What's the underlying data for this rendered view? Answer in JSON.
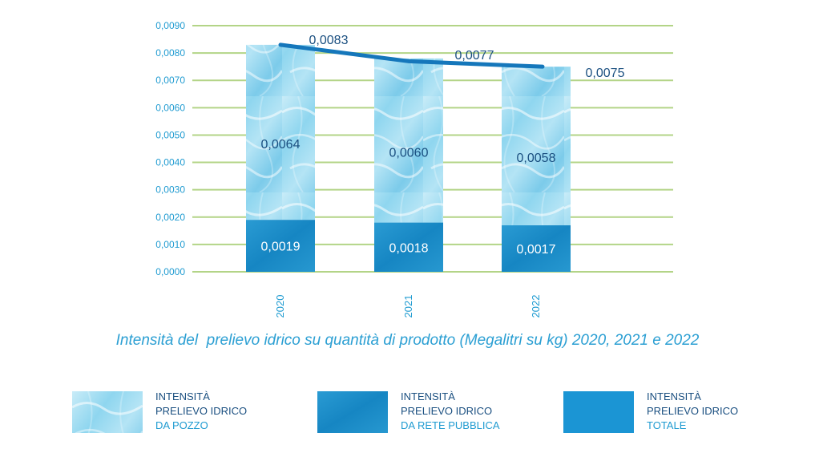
{
  "colors": {
    "grid": "#b3d487",
    "axis_text": "#1f9bd1",
    "line": "#1577bb",
    "label_dark": "#1a4f80",
    "bar_water_base": "#8fd3ec",
    "bar_rete": "#1a8fca",
    "bar_totale": "#1b95d4"
  },
  "chart_data": {
    "type": "bar",
    "title": "Intensità del  prelievo idrico su quantità di prodotto (Megalitri su kg) 2020, 2021 e 2022",
    "categories": [
      "2020",
      "2021",
      "2022"
    ],
    "ylim": [
      0,
      0.009
    ],
    "yticks": [
      {
        "value": 0.0,
        "label": "0,0000"
      },
      {
        "value": 0.001,
        "label": "0,0010"
      },
      {
        "value": 0.002,
        "label": "0,0020"
      },
      {
        "value": 0.003,
        "label": "0,0030"
      },
      {
        "value": 0.004,
        "label": "0,0040"
      },
      {
        "value": 0.005,
        "label": "0,0050"
      },
      {
        "value": 0.006,
        "label": "0,0060"
      },
      {
        "value": 0.007,
        "label": "0,0070"
      },
      {
        "value": 0.008,
        "label": "0,0080"
      },
      {
        "value": 0.009,
        "label": "0,0090"
      }
    ],
    "grid": true,
    "series": [
      {
        "name": "Intensità prelievo idrico da rete pubblica",
        "kind": "stacked-bar-bottom",
        "values": [
          0.0019,
          0.0018,
          0.0017
        ],
        "labels": [
          "0,0019",
          "0,0018",
          "0,0017"
        ]
      },
      {
        "name": "Intensità prelievo idrico da pozzo",
        "kind": "stacked-bar-top",
        "values": [
          0.0064,
          0.006,
          0.0058
        ],
        "labels": [
          "0,0064",
          "0,0060",
          "0,0058"
        ]
      },
      {
        "name": "Intensità prelievo idrico totale",
        "kind": "line",
        "values": [
          0.0083,
          0.0077,
          0.0075
        ],
        "labels": [
          "0,0083",
          "0,0077",
          "0,0075"
        ]
      }
    ]
  },
  "legend": [
    {
      "line1": "INTENSITÀ",
      "line2": "PRELIEVO IDRICO",
      "line3": "DA POZZO"
    },
    {
      "line1": "INTENSITÀ",
      "line2": "PRELIEVO IDRICO",
      "line3": "DA RETE PUBBLICA"
    },
    {
      "line1": "INTENSITÀ",
      "line2": "PRELIEVO IDRICO",
      "line3": "TOTALE"
    }
  ]
}
